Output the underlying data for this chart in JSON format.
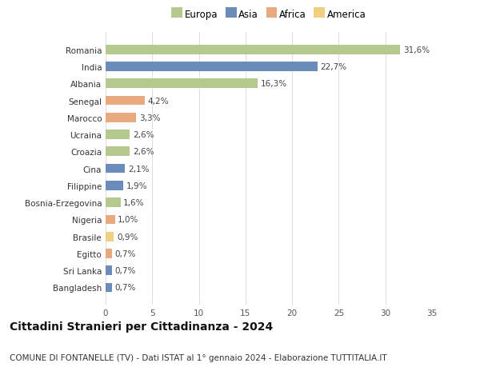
{
  "countries": [
    "Romania",
    "India",
    "Albania",
    "Senegal",
    "Marocco",
    "Ucraina",
    "Croazia",
    "Cina",
    "Filippine",
    "Bosnia-Erzegovina",
    "Nigeria",
    "Brasile",
    "Egitto",
    "Sri Lanka",
    "Bangladesh"
  ],
  "values": [
    31.6,
    22.7,
    16.3,
    4.2,
    3.3,
    2.6,
    2.6,
    2.1,
    1.9,
    1.6,
    1.0,
    0.9,
    0.7,
    0.7,
    0.7
  ],
  "labels": [
    "31,6%",
    "22,7%",
    "16,3%",
    "4,2%",
    "3,3%",
    "2,6%",
    "2,6%",
    "2,1%",
    "1,9%",
    "1,6%",
    "1,0%",
    "0,9%",
    "0,7%",
    "0,7%",
    "0,7%"
  ],
  "continents": [
    "Europa",
    "Asia",
    "Europa",
    "Africa",
    "Africa",
    "Europa",
    "Europa",
    "Asia",
    "Asia",
    "Europa",
    "Africa",
    "America",
    "Africa",
    "Asia",
    "Asia"
  ],
  "colors": {
    "Europa": "#b5c98e",
    "Asia": "#6b8cba",
    "Africa": "#e8a97e",
    "America": "#f0d080"
  },
  "legend_order": [
    "Europa",
    "Asia",
    "Africa",
    "America"
  ],
  "title": "Cittadini Stranieri per Cittadinanza - 2024",
  "subtitle": "COMUNE DI FONTANELLE (TV) - Dati ISTAT al 1° gennaio 2024 - Elaborazione TUTTITALIA.IT",
  "xlim": [
    0,
    35
  ],
  "xticks": [
    0,
    5,
    10,
    15,
    20,
    25,
    30,
    35
  ],
  "background_color": "#ffffff",
  "grid_color": "#dddddd",
  "title_fontsize": 10,
  "subtitle_fontsize": 7.5,
  "label_fontsize": 7.5,
  "tick_fontsize": 7.5,
  "legend_fontsize": 8.5
}
